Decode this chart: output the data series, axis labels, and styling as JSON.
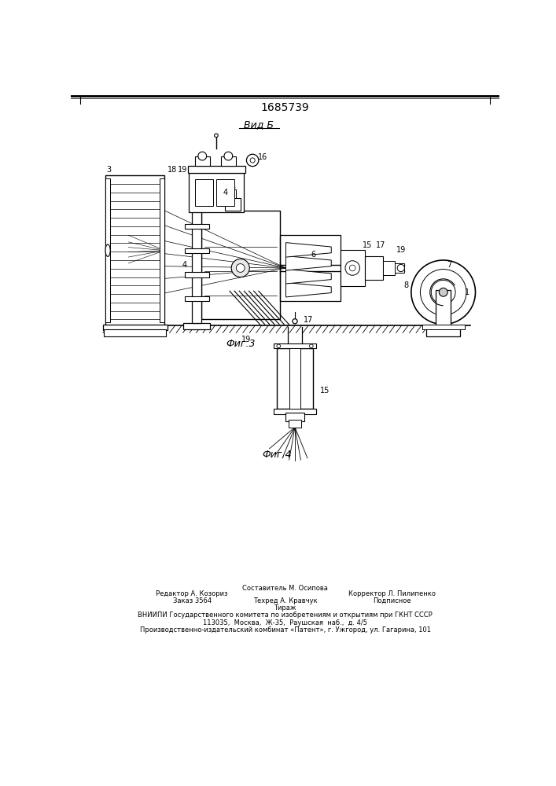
{
  "title": "1685739",
  "background_color": "#ffffff",
  "line_color": "#000000",
  "fig3_label": "Фиг.3",
  "fig4_label": "Фиг.4",
  "vid_b_label": "Вид Б",
  "footer_line1": "Составитель М. Осипова",
  "footer_line2a": "Редактор А. Козориз",
  "footer_line2b": "Техред А. Кравчук",
  "footer_line2c": "Корректор Л. Пилипенко",
  "footer_line3a": "Заказ 3564",
  "footer_line3b": "Тираж",
  "footer_line3c": "Подписное",
  "footer_line4": "ВНИИПИ Государственного комитета по изобретениям и открытиям при ГКНТ СССР",
  "footer_line5": "113035,  Москва,  Ж-35,  Раушская  наб.,  д. 4/5",
  "footer_line6": "Производственно-издательский комбинат «Патент», г. Ужгород, ул. Гагарина, 101"
}
